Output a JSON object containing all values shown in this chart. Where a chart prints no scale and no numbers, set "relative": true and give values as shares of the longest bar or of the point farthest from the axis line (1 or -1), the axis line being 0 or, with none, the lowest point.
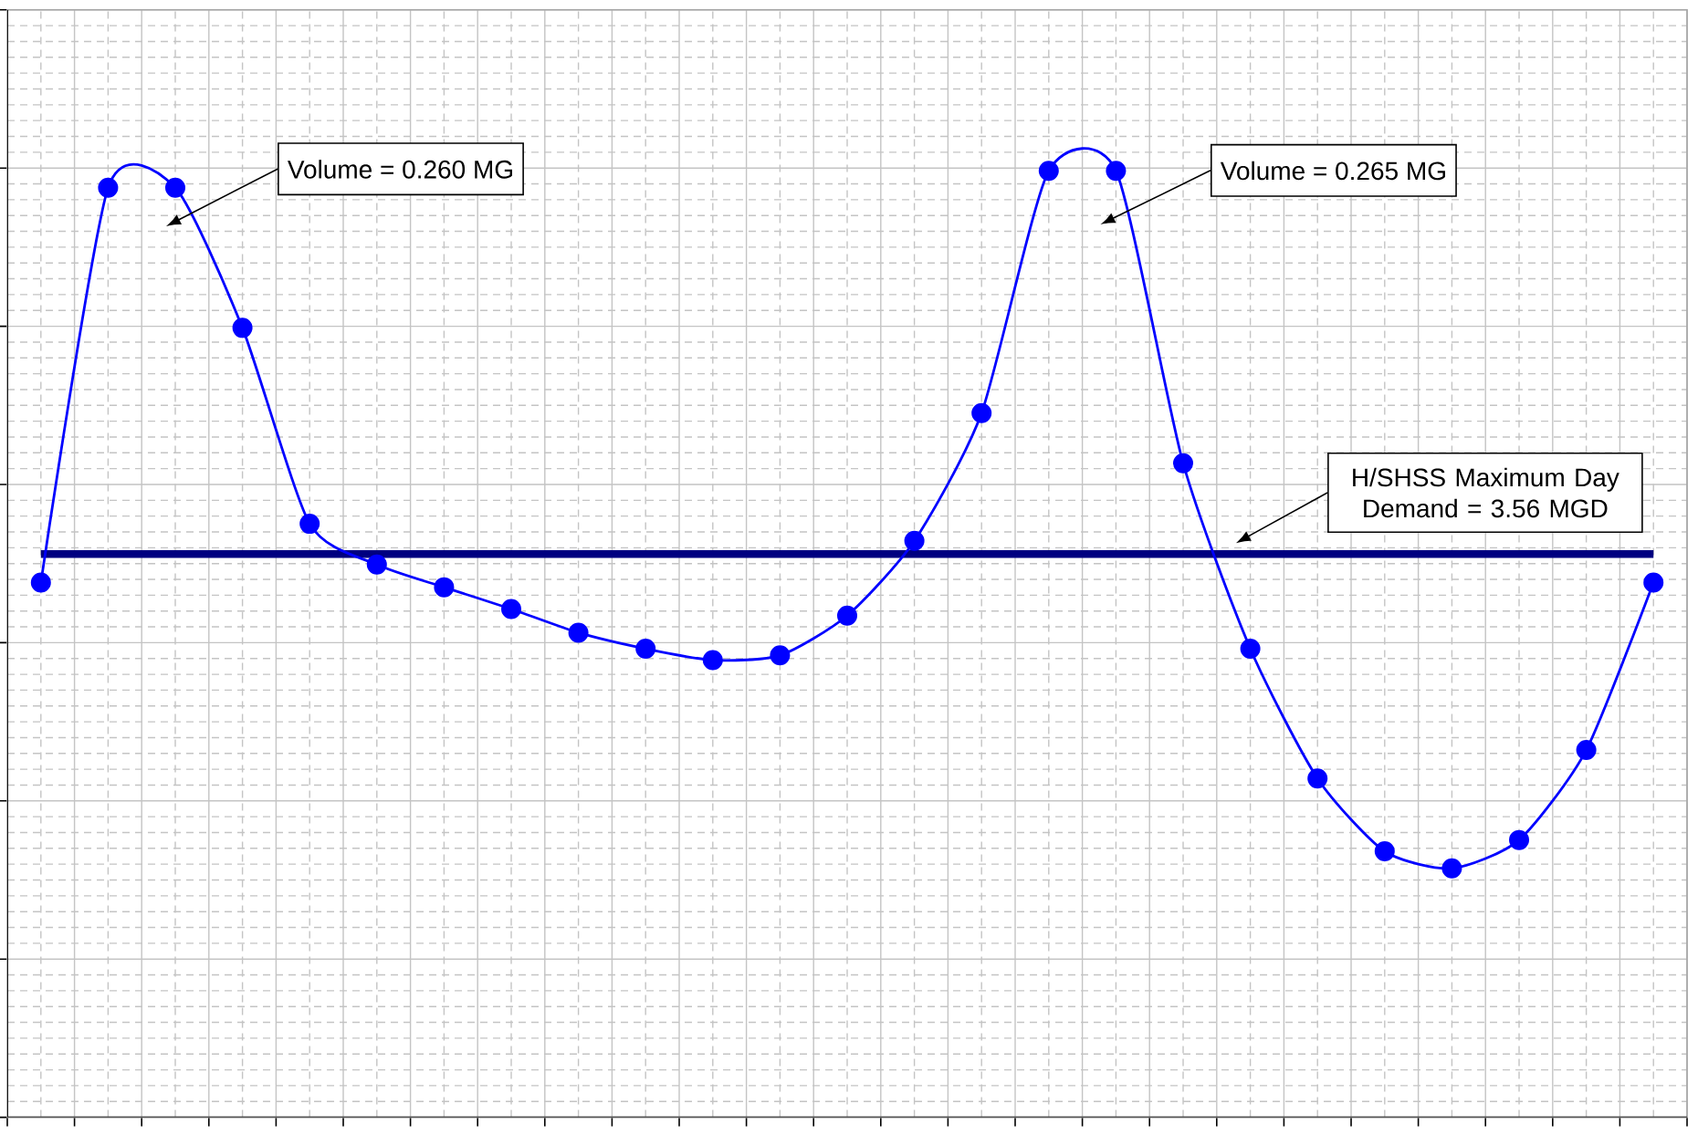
{
  "chart_data": {
    "type": "line",
    "relative": true,
    "categories": [
      null,
      null,
      null,
      null,
      null,
      null,
      null,
      null,
      null,
      null,
      null,
      null,
      null,
      null,
      null,
      null,
      null,
      null,
      null,
      null,
      null,
      null,
      null,
      null,
      null
    ],
    "series": [
      {
        "color": "#0000ff",
        "values": [
          0.565,
          0.982,
          0.982,
          0.834,
          0.627,
          0.584,
          0.56,
          0.537,
          0.512,
          0.495,
          0.483,
          0.488,
          0.53,
          0.609,
          0.744,
          1,
          1,
          0.691,
          0.495,
          0.358,
          0.281,
          0.263,
          0.293,
          0.388,
          0.565
        ]
      }
    ],
    "marker": "circle",
    "line_style": "solid",
    "grid": true,
    "ref_lines": [
      {
        "axis": "y",
        "value": 0.595,
        "color": "#000080",
        "line_style": "solid"
      }
    ],
    "annotations": [
      "Volume = 0.260 MG",
      "Volume = 0.265 MG",
      "H/SHSS Maximum Day Demand = 3.56 MGD"
    ]
  }
}
